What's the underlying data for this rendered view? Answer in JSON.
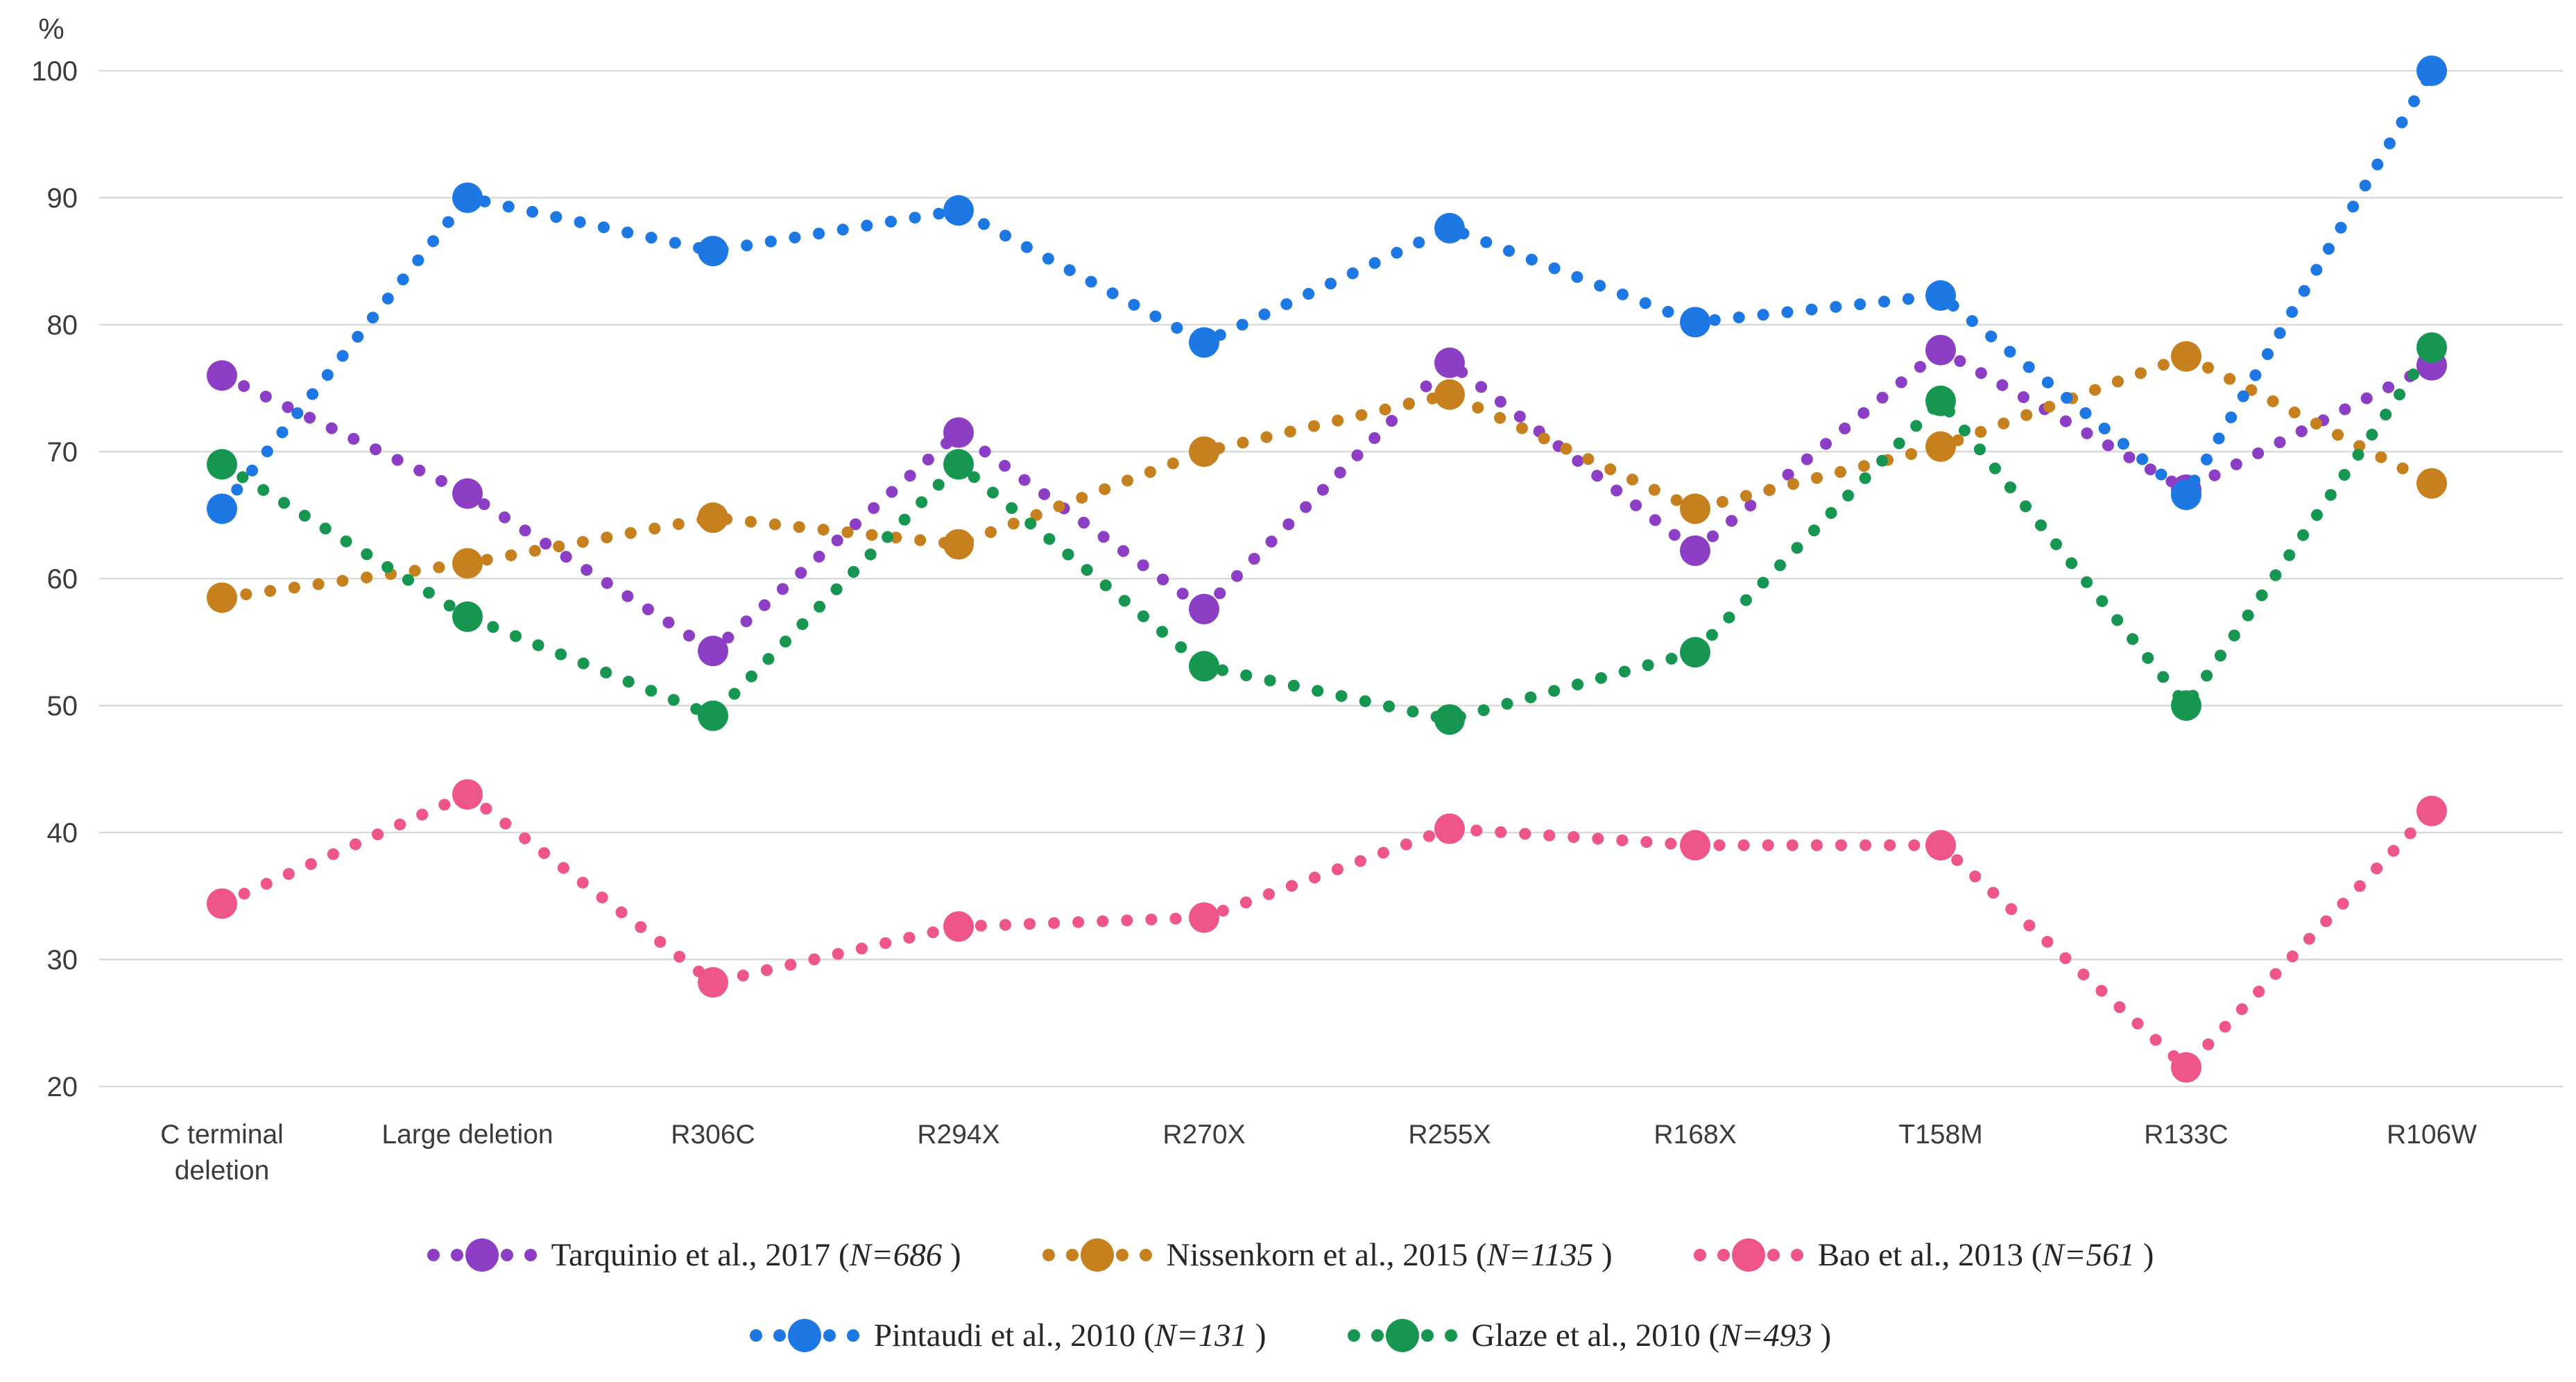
{
  "chart_data": {
    "type": "line",
    "style": "dotted-lines-with-large-round-markers",
    "title": "",
    "unit_label": "%",
    "xlabel": "",
    "ylabel": "%",
    "ylim": [
      20,
      100
    ],
    "y_ticks": [
      100,
      90,
      80,
      70,
      60,
      50,
      40,
      30,
      20
    ],
    "grid": "horizontal",
    "legend_position": "bottom-two-rows",
    "categories": [
      "C terminal\ndeletion",
      "Large deletion",
      "R306C",
      "R294X",
      "R270X",
      "R255X",
      "R168X",
      "T158M",
      "R133C",
      "R106W"
    ],
    "series": [
      {
        "name": "Tarquinio et al., 2017",
        "n_label": "N=686",
        "legend_text_prefix": "Tarquinio et al., 2017 (",
        "legend_text_suffix": " )",
        "color": "#8c3fc4",
        "values": [
          76,
          66.7,
          54.3,
          71.5,
          57.6,
          77,
          62.2,
          78,
          67,
          76.8
        ]
      },
      {
        "name": "Nissenkorn et al., 2015",
        "n_label": "N=1135",
        "legend_text_prefix": "Nissenkorn et al., 2015 (",
        "legend_text_suffix": " )",
        "color": "#c6801e",
        "values": [
          58.5,
          61.2,
          64.8,
          62.7,
          70,
          74.5,
          65.5,
          70.4,
          77.5,
          67.5
        ]
      },
      {
        "name": "Bao et al., 2013",
        "n_label": "N=561",
        "legend_text_prefix": "Bao et al., 2013 (",
        "legend_text_suffix": " )",
        "color": "#ee5588",
        "values": [
          34.4,
          43,
          28.2,
          32.6,
          33.3,
          40.3,
          39,
          39,
          21.5,
          41.7
        ]
      },
      {
        "name": "Pintaudi et al., 2010",
        "n_label": "N=131",
        "legend_text_prefix": "Pintaudi et al., 2010 (",
        "legend_text_suffix": " )",
        "color": "#1e78e4",
        "values": [
          65.5,
          90,
          85.8,
          89,
          78.6,
          87.6,
          80.2,
          82.3,
          66.6,
          100
        ]
      },
      {
        "name": "Glaze et al., 2010",
        "n_label": "N=493",
        "legend_text_prefix": "Glaze et al., 2010 (",
        "legend_text_suffix": " )",
        "color": "#169650",
        "values": [
          69,
          57,
          49.2,
          69,
          53.1,
          48.9,
          54.2,
          74,
          50,
          78.2
        ]
      }
    ],
    "legend_rows": [
      [
        0,
        1,
        2
      ],
      [
        3,
        4
      ]
    ]
  },
  "colors": {
    "gridline": "#d9d9d9",
    "axis_text": "#3b3b3b",
    "legend_text": "#262626",
    "background": "#ffffff"
  }
}
